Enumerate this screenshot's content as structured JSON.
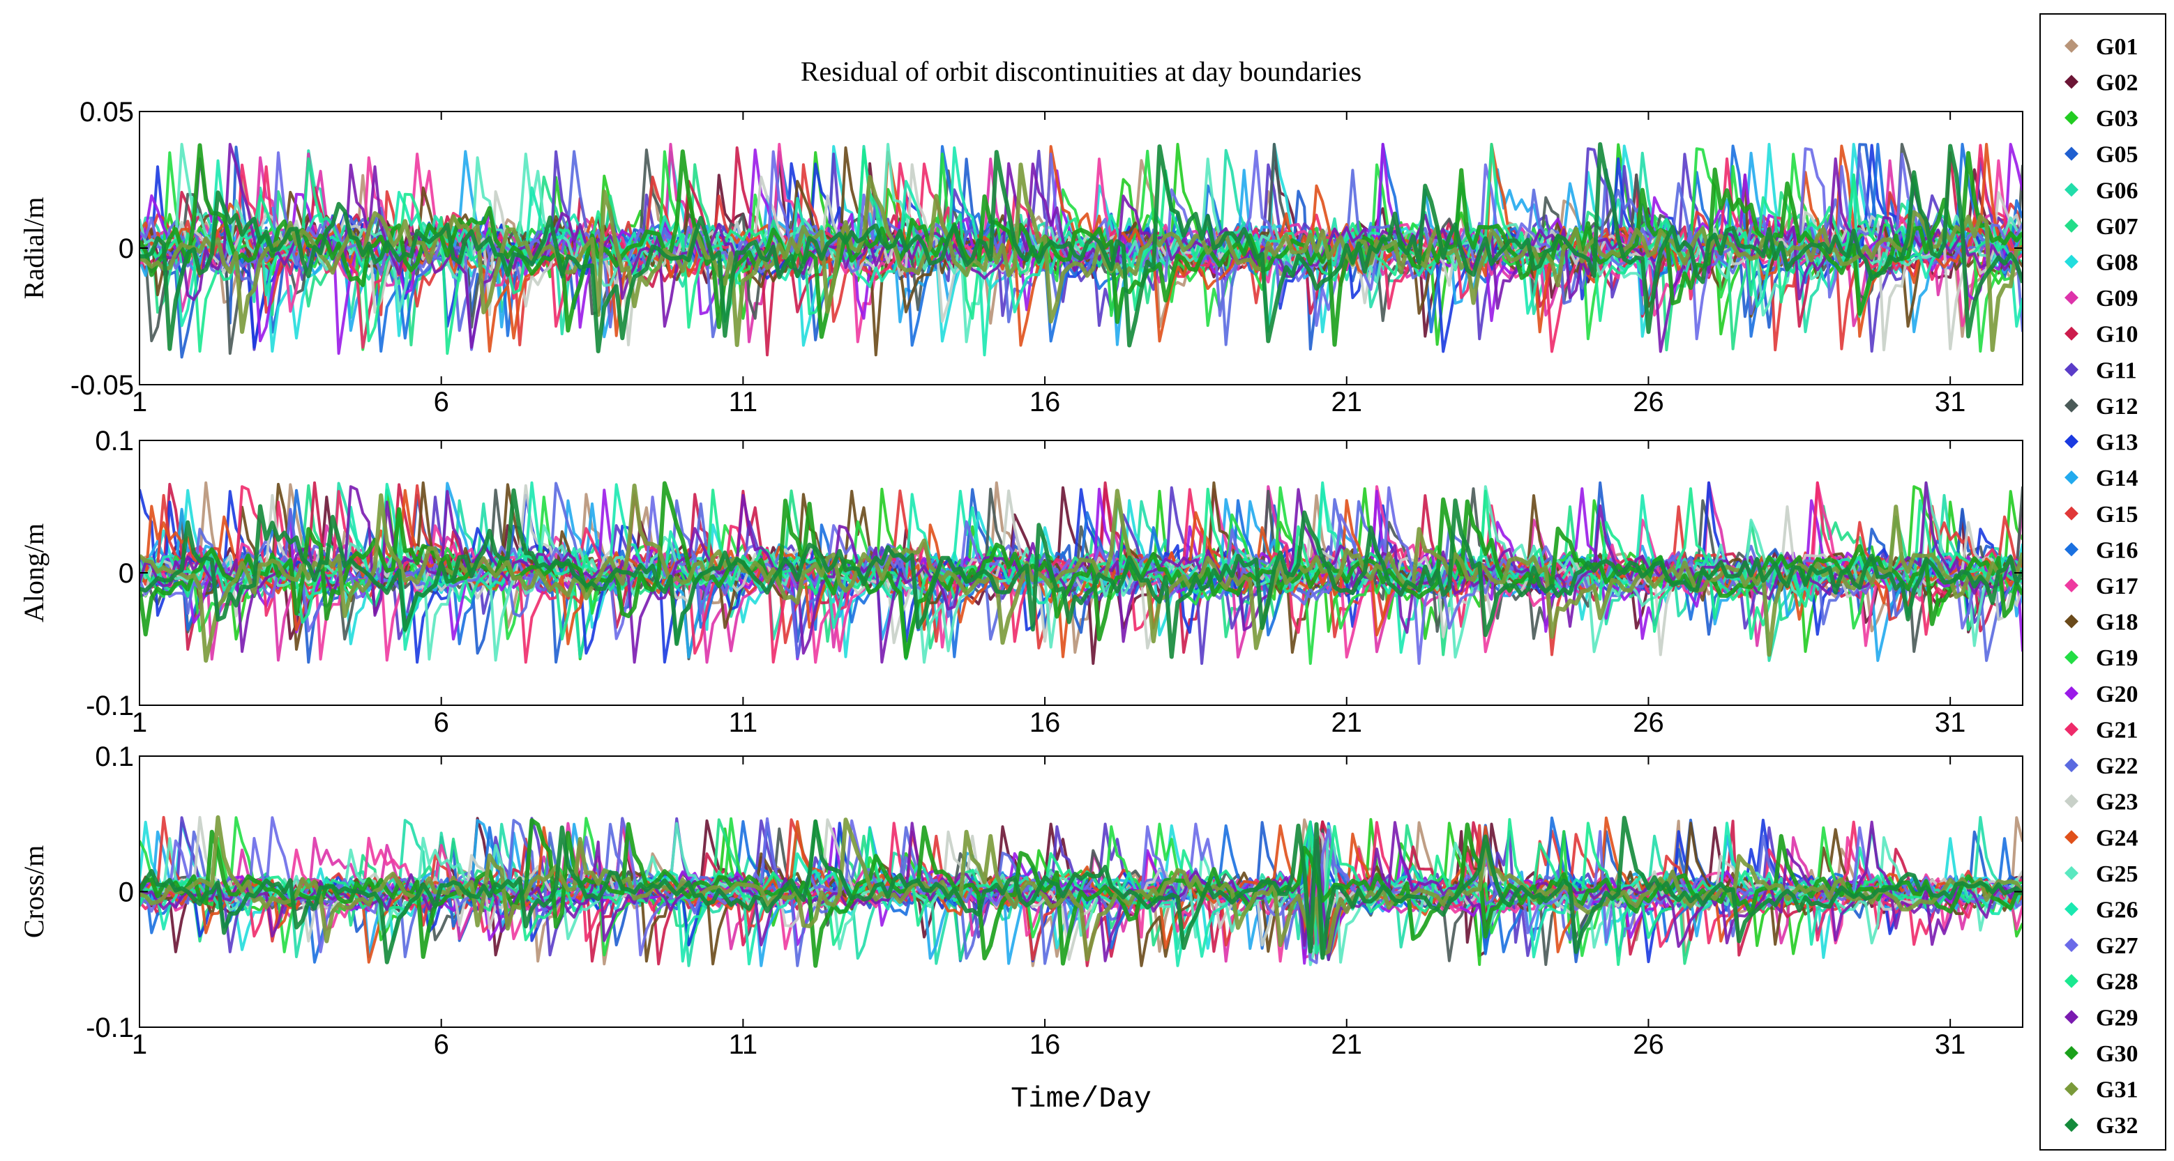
{
  "chart_data": {
    "type": "scatter",
    "title": "Residual of orbit discontinuities at day boundaries",
    "xlabel": "Time/Day",
    "x_ticks": [
      "1",
      "6",
      "11",
      "16",
      "21",
      "26",
      "31"
    ],
    "xlim": [
      1,
      32.2
    ],
    "grid": false,
    "legend_placement": "right",
    "panels": [
      {
        "ylabel": "Radial/m",
        "ylim": [
          -0.05,
          0.05
        ],
        "y_ticks": [
          {
            "value": 0.05,
            "label": "0.05"
          },
          {
            "value": 0,
            "label": "0"
          },
          {
            "value": -0.05,
            "label": "-0.05"
          }
        ],
        "typical_amplitude": 0.012,
        "peak_extent": [
          -0.04,
          0.038
        ],
        "bursts": []
      },
      {
        "ylabel": "Along/m",
        "ylim": [
          -0.1,
          0.1
        ],
        "y_ticks": [
          {
            "value": 0.1,
            "label": "0.1"
          },
          {
            "value": 0,
            "label": "0"
          },
          {
            "value": -0.1,
            "label": "-0.1"
          }
        ],
        "typical_amplitude": 0.02,
        "peak_extent": [
          -0.07,
          0.068
        ],
        "bursts": []
      },
      {
        "ylabel": "Cross/m",
        "ylim": [
          -0.1,
          0.1
        ],
        "y_ticks": [
          {
            "value": 0.1,
            "label": "0.1"
          },
          {
            "value": 0,
            "label": "0"
          },
          {
            "value": -0.1,
            "label": "-0.1"
          }
        ],
        "typical_amplitude": 0.015,
        "peak_extent": [
          -0.055,
          0.055
        ],
        "bursts": [
          {
            "day": 20.5,
            "width": 0.5,
            "extent": [
              -0.055,
              0.055
            ]
          },
          {
            "day": 23.3,
            "width": 0.1,
            "extent": [
              -0.05,
              0.05
            ]
          }
        ]
      }
    ],
    "series": [
      {
        "name": "G01",
        "color": "#b89478"
      },
      {
        "name": "G02",
        "color": "#6b1535"
      },
      {
        "name": "G03",
        "color": "#22cc22"
      },
      {
        "name": "G05",
        "color": "#1f5fd0"
      },
      {
        "name": "G06",
        "color": "#22ddaa"
      },
      {
        "name": "G07",
        "color": "#22dd88"
      },
      {
        "name": "G08",
        "color": "#22dddd"
      },
      {
        "name": "G09",
        "color": "#dd33aa"
      },
      {
        "name": "G10",
        "color": "#cc1c4c"
      },
      {
        "name": "G11",
        "color": "#5a3cc8"
      },
      {
        "name": "G12",
        "color": "#4a5a58"
      },
      {
        "name": "G13",
        "color": "#1a3ae0"
      },
      {
        "name": "G14",
        "color": "#22aaee"
      },
      {
        "name": "G15",
        "color": "#e03838"
      },
      {
        "name": "G16",
        "color": "#1a70e0"
      },
      {
        "name": "G17",
        "color": "#ee3aa0"
      },
      {
        "name": "G18",
        "color": "#6a4a1a"
      },
      {
        "name": "G19",
        "color": "#22dd44"
      },
      {
        "name": "G20",
        "color": "#9a1ae8"
      },
      {
        "name": "G21",
        "color": "#ee2a6a"
      },
      {
        "name": "G22",
        "color": "#5a6ae0"
      },
      {
        "name": "G23",
        "color": "#c8d0c8"
      },
      {
        "name": "G24",
        "color": "#e0501a"
      },
      {
        "name": "G25",
        "color": "#5ae8c0"
      },
      {
        "name": "G26",
        "color": "#1ae8b0"
      },
      {
        "name": "G27",
        "color": "#6a6ae8"
      },
      {
        "name": "G28",
        "color": "#1ae890"
      },
      {
        "name": "G29",
        "color": "#7a1ab0"
      },
      {
        "name": "G30",
        "color": "#1aa01a"
      },
      {
        "name": "G31",
        "color": "#7a9a3a"
      },
      {
        "name": "G32",
        "color": "#138a3a"
      }
    ]
  }
}
